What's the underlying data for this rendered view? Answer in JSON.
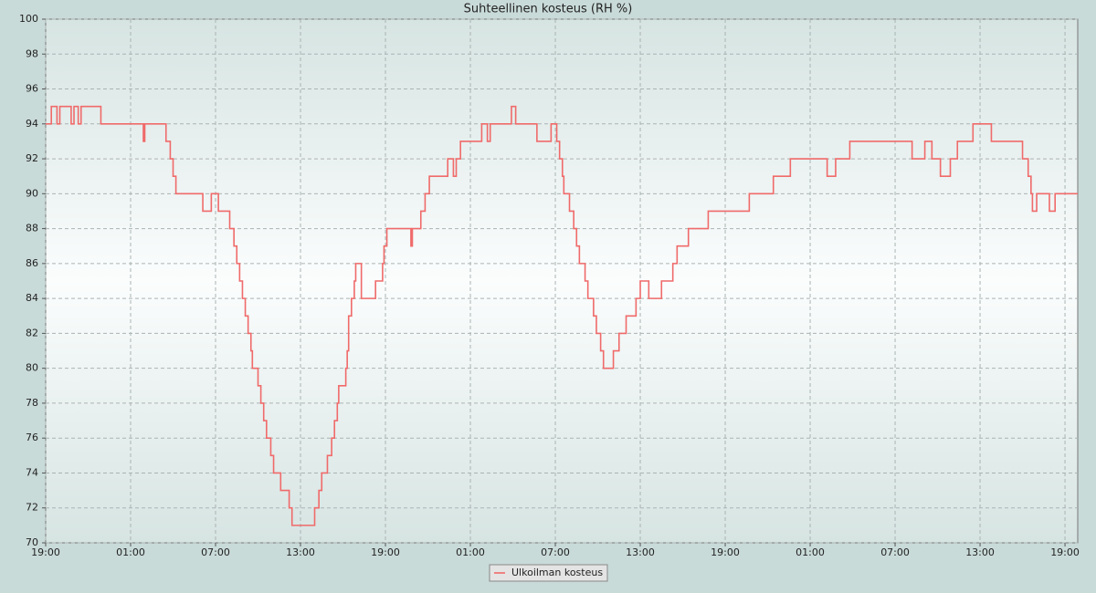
{
  "chart_data": {
    "type": "line",
    "title": "Suhteellinen kosteus (RH %)",
    "step": "post",
    "grid": true,
    "x": [
      0,
      0.4,
      0.8,
      1.0,
      1.3,
      1.8,
      2.0,
      2.3,
      2.5,
      3.9,
      6.9,
      7.0,
      8.5,
      8.8,
      9.0,
      9.2,
      11.1,
      11.7,
      12.2,
      13.0,
      13.3,
      13.5,
      13.7,
      13.9,
      14.1,
      14.3,
      14.5,
      14.6,
      15.0,
      15.2,
      15.4,
      15.6,
      15.9,
      16.1,
      16.6,
      17.2,
      17.4,
      19.0,
      19.3,
      19.5,
      19.9,
      20.2,
      20.4,
      20.6,
      20.7,
      21.2,
      21.3,
      21.4,
      21.6,
      21.8,
      21.9,
      22.3,
      23.3,
      23.8,
      23.9,
      24.1,
      25.8,
      25.9,
      26.5,
      26.8,
      27.1,
      28.4,
      28.8,
      29.0,
      29.3,
      30.8,
      31.2,
      31.4,
      32.9,
      33.2,
      34.7,
      35.7,
      36.1,
      36.3,
      36.5,
      36.6,
      37.0,
      37.3,
      37.5,
      37.7,
      38.1,
      38.3,
      38.7,
      38.9,
      39.2,
      39.4,
      40.1,
      40.5,
      41.0,
      41.7,
      42.0,
      42.6,
      43.5,
      44.3,
      44.6,
      45.4,
      46.8,
      49.7,
      51.4,
      52.6,
      55.2,
      55.8,
      56.8,
      61.2,
      62.1,
      62.6,
      63.2,
      63.9,
      64.4,
      65.5,
      66.8,
      69.0,
      69.4,
      69.6,
      69.7,
      70.0,
      70.9,
      71.3,
      72.9
    ],
    "series": [
      {
        "name": "Ulkoilman kosteus",
        "color": "#f06a6a",
        "values": [
          94,
          95,
          94,
          95,
          95,
          94,
          95,
          94,
          95,
          94,
          93,
          94,
          93,
          92,
          91,
          90,
          89,
          90,
          89,
          88,
          87,
          86,
          85,
          84,
          83,
          82,
          81,
          80,
          79,
          78,
          77,
          76,
          75,
          74,
          73,
          72,
          71,
          72,
          73,
          74,
          75,
          76,
          77,
          78,
          79,
          80,
          81,
          83,
          84,
          85,
          86,
          84,
          85,
          86,
          87,
          88,
          87,
          88,
          89,
          90,
          91,
          92,
          91,
          92,
          93,
          94,
          93,
          94,
          95,
          94,
          93,
          94,
          93,
          92,
          91,
          90,
          89,
          88,
          87,
          86,
          85,
          84,
          83,
          82,
          81,
          80,
          81,
          82,
          83,
          84,
          85,
          84,
          85,
          86,
          87,
          88,
          89,
          90,
          91,
          92,
          91,
          92,
          93,
          92,
          93,
          92,
          91,
          92,
          93,
          94,
          93,
          92,
          91,
          90,
          89,
          90,
          89,
          90,
          90
        ]
      }
    ],
    "xlim": [
      0,
      72.9
    ],
    "xticks": [
      {
        "value": 0,
        "label": "19:00"
      },
      {
        "value": 6,
        "label": "01:00"
      },
      {
        "value": 12,
        "label": "07:00"
      },
      {
        "value": 18,
        "label": "13:00"
      },
      {
        "value": 24,
        "label": "19:00"
      },
      {
        "value": 30,
        "label": "01:00"
      },
      {
        "value": 36,
        "label": "07:00"
      },
      {
        "value": 42,
        "label": "13:00"
      },
      {
        "value": 48,
        "label": "19:00"
      },
      {
        "value": 54,
        "label": "01:00"
      },
      {
        "value": 60,
        "label": "07:00"
      },
      {
        "value": 66,
        "label": "13:00"
      },
      {
        "value": 72,
        "label": "19:00"
      }
    ],
    "ylim": [
      70,
      100
    ],
    "yticks": [
      70,
      72,
      74,
      76,
      78,
      80,
      82,
      84,
      86,
      88,
      90,
      92,
      94,
      96,
      98,
      100
    ]
  }
}
